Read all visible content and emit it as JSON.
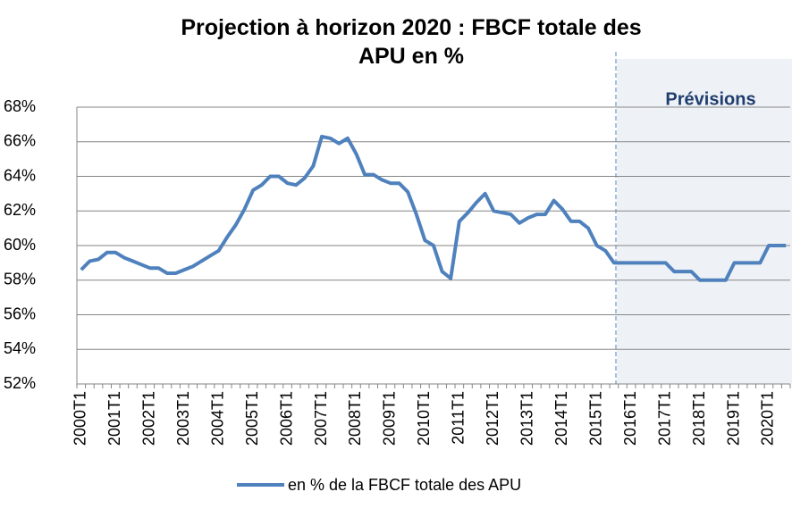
{
  "chart_data": {
    "type": "line",
    "title": "Projection à horizon 2020 :  FBCF totale des APU en %",
    "annotation": "Prévisions",
    "categories": [
      "2000T1",
      null,
      null,
      null,
      "2001T1",
      null,
      null,
      null,
      "2002T1",
      null,
      null,
      null,
      "2003T1",
      null,
      null,
      null,
      "2004T1",
      null,
      null,
      null,
      "2005T1",
      null,
      null,
      null,
      "2006T1",
      null,
      null,
      null,
      "2007T1",
      null,
      null,
      null,
      "2008T1",
      null,
      null,
      null,
      "2009T1",
      null,
      null,
      null,
      "2010T1",
      null,
      null,
      null,
      "2011T1",
      null,
      null,
      null,
      "2012T1",
      null,
      null,
      null,
      "2013T1",
      null,
      null,
      null,
      "2014T1",
      null,
      null,
      null,
      "2015T1",
      null,
      null,
      null,
      "2016T1",
      null,
      null,
      null,
      "2017T1",
      null,
      null,
      null,
      "2018T1",
      null,
      null,
      null,
      "2019T1",
      null,
      null,
      null,
      "2020T1",
      null,
      null
    ],
    "series": [
      {
        "name": "en % de la FBCF totale des APU",
        "color": "#4f81bd",
        "values": [
          58.6,
          59.1,
          59.2,
          59.6,
          59.6,
          59.3,
          59.1,
          58.9,
          58.7,
          58.7,
          58.4,
          58.4,
          58.6,
          58.8,
          59.1,
          59.4,
          59.7,
          60.5,
          61.2,
          62.1,
          63.2,
          63.5,
          64.0,
          64.0,
          63.6,
          63.5,
          63.9,
          64.6,
          66.3,
          66.2,
          65.9,
          66.2,
          65.3,
          64.1,
          64.1,
          63.8,
          63.6,
          63.6,
          63.1,
          61.8,
          60.3,
          60.0,
          58.5,
          58.1,
          61.4,
          61.9,
          62.5,
          63.0,
          62.0,
          61.9,
          61.8,
          61.3,
          61.6,
          61.8,
          61.8,
          62.6,
          62.1,
          61.4,
          61.4,
          61.0,
          60.0,
          59.7,
          59.0,
          59.0,
          59.0,
          59.0,
          59.0,
          59.0,
          59.0,
          58.5,
          58.5,
          58.5,
          58.0,
          58.0,
          58.0,
          58.0,
          59.0,
          59.0,
          59.0,
          59.0,
          60.0,
          60.0,
          60.0
        ]
      }
    ],
    "ylim": [
      52,
      68
    ],
    "yticks": [
      {
        "value": 52,
        "label": "52%"
      },
      {
        "value": 54,
        "label": "54%"
      },
      {
        "value": 56,
        "label": "56%"
      },
      {
        "value": 58,
        "label": "58%"
      },
      {
        "value": 60,
        "label": "60%"
      },
      {
        "value": 62,
        "label": "62%"
      },
      {
        "value": 64,
        "label": "64%"
      },
      {
        "value": 66,
        "label": "66%"
      },
      {
        "value": 68,
        "label": "68%"
      }
    ],
    "grid": true
  }
}
